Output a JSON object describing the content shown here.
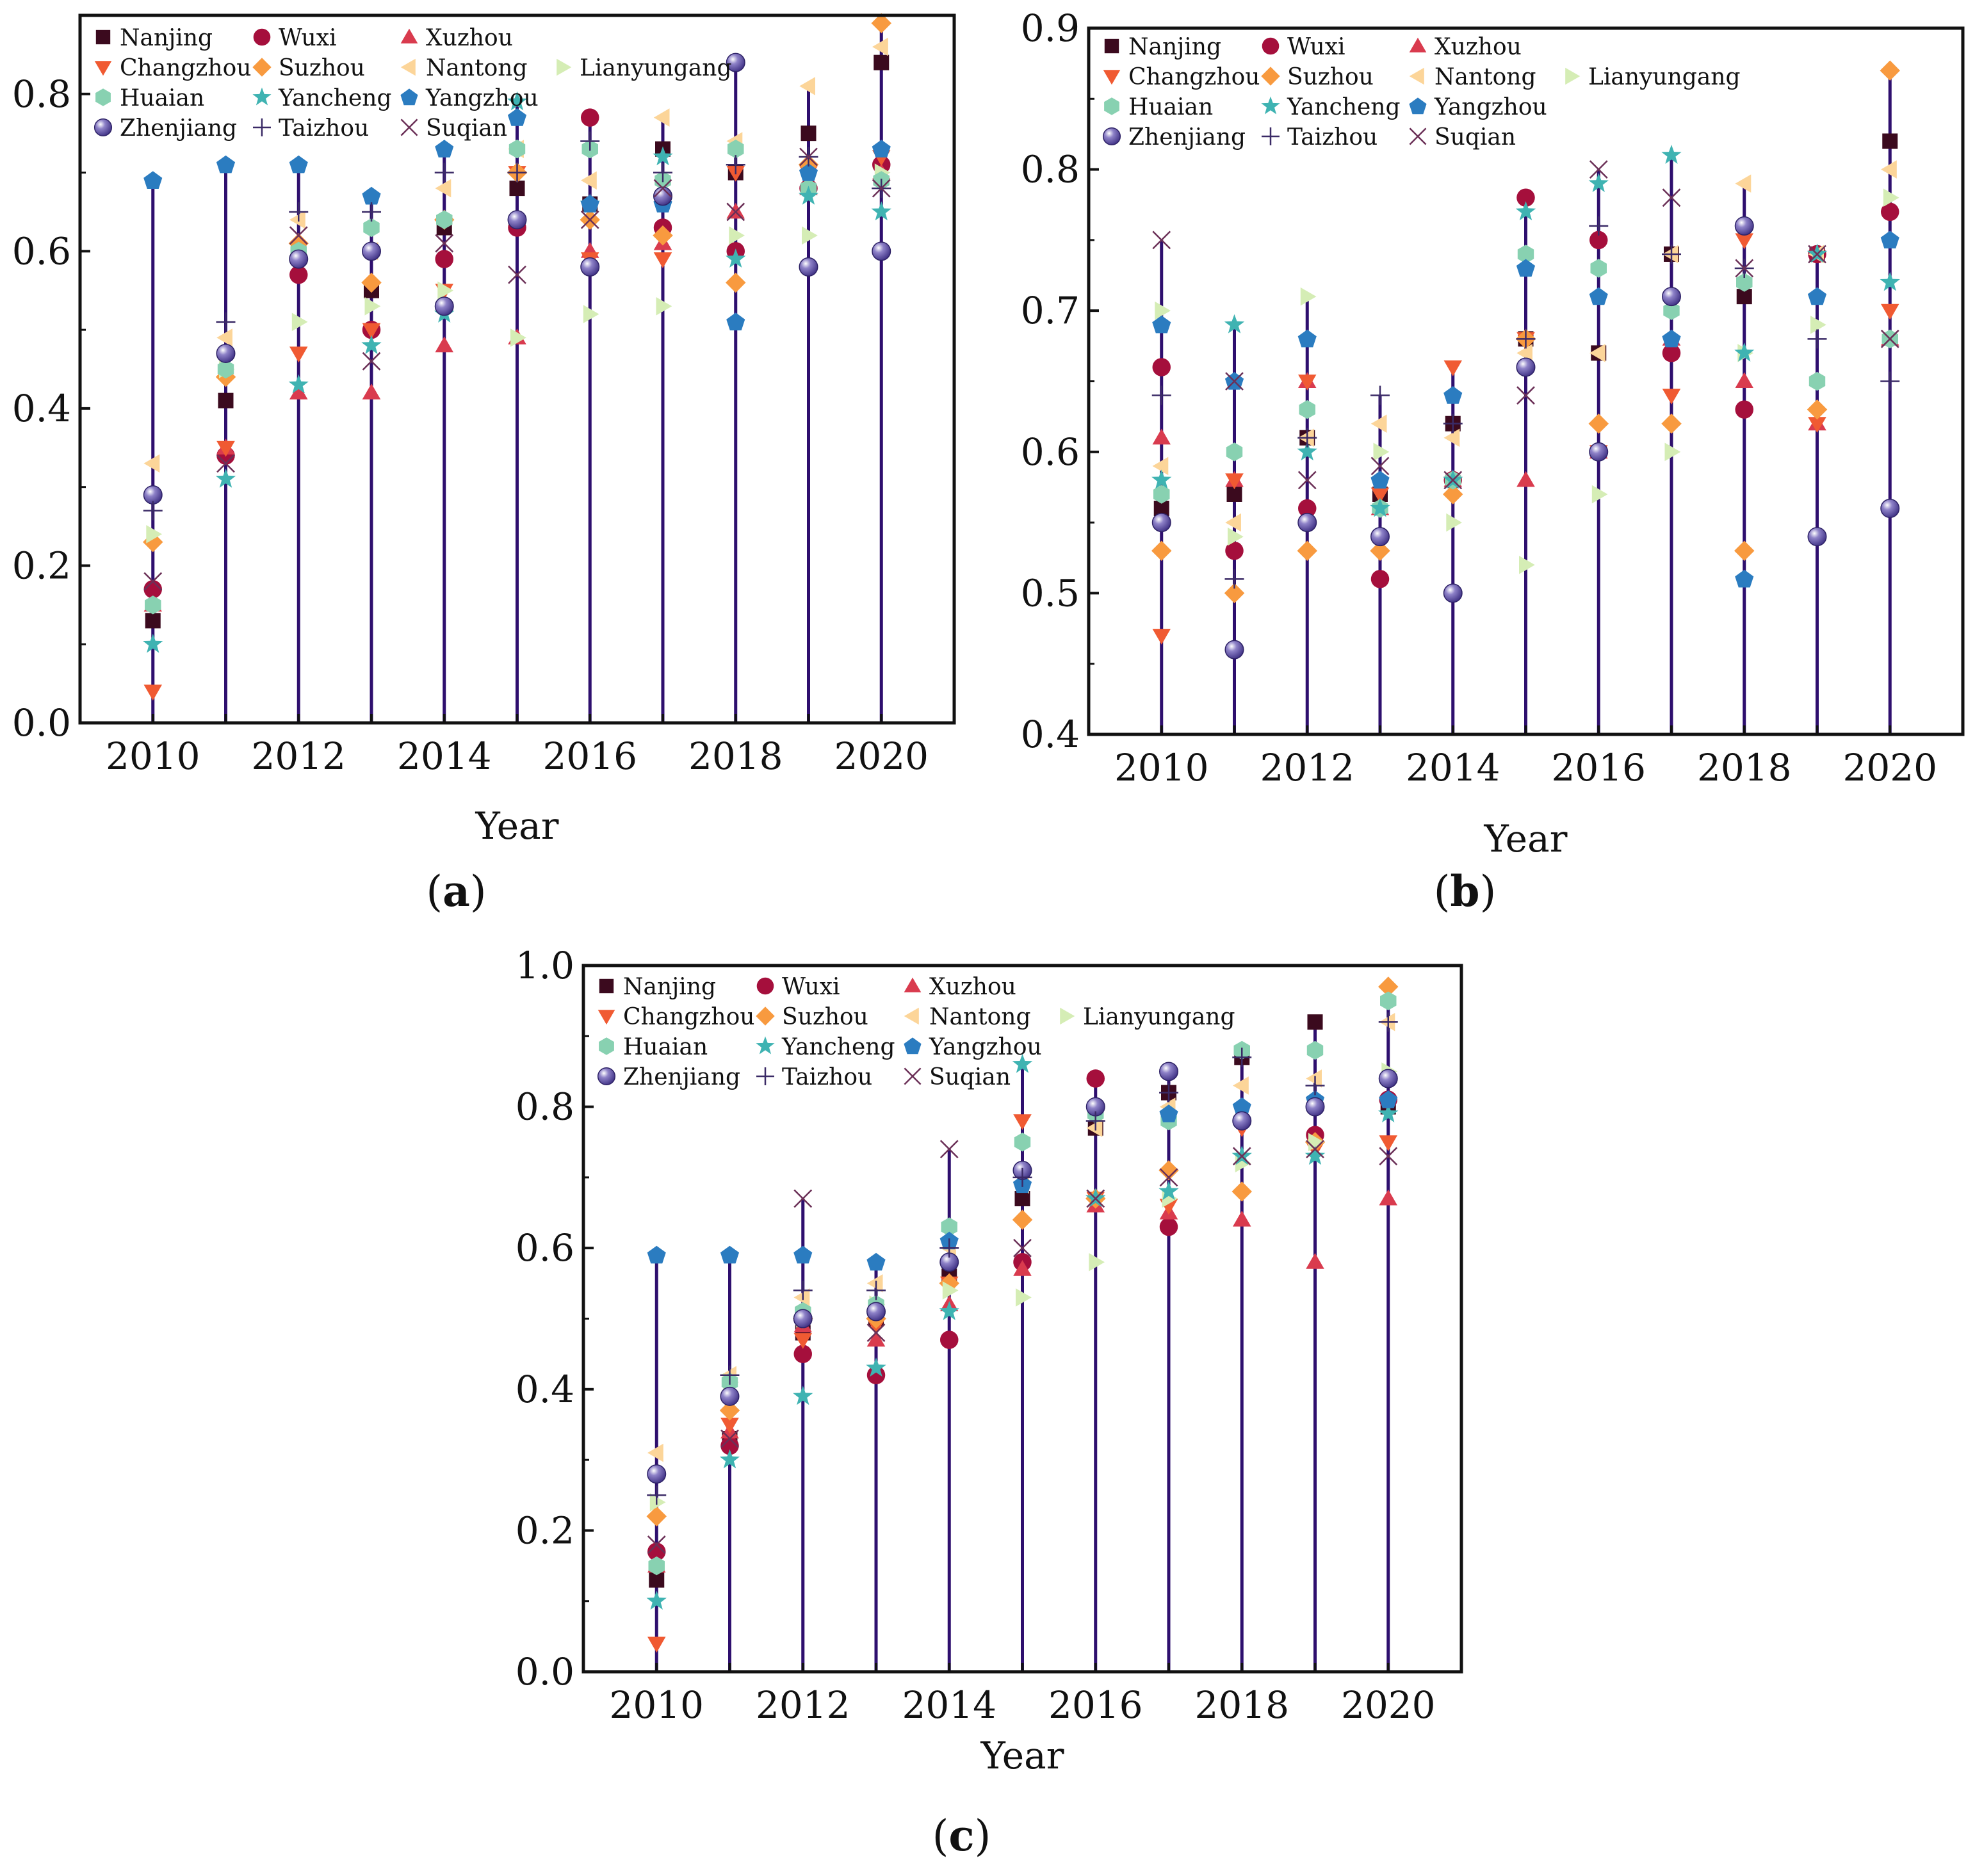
{
  "figure": {
    "cities": [
      "Nanjing",
      "Wuxi",
      "Xuzhou",
      "Changzhou",
      "Suzhou",
      "Nantong",
      "Lianyungang",
      "Huaian",
      "Yancheng",
      "Yangzhou",
      "Zhenjiang",
      "Taizhou",
      "Suqian"
    ],
    "markers": {
      "Nanjing": {
        "shape": "square",
        "color": "#3b0a1e"
      },
      "Wuxi": {
        "shape": "circle",
        "color": "#a50f3c"
      },
      "Xuzhou": {
        "shape": "triangle-up",
        "color": "#d93b4e"
      },
      "Changzhou": {
        "shape": "triangle-down",
        "color": "#f05a32"
      },
      "Suzhou": {
        "shape": "diamond",
        "color": "#f89a3f"
      },
      "Nantong": {
        "shape": "triangle-left",
        "color": "#fcd599"
      },
      "Lianyungang": {
        "shape": "triangle-right",
        "color": "#d5edb5"
      },
      "Huaian": {
        "shape": "hexagon",
        "color": "#88d1b1"
      },
      "Yancheng": {
        "shape": "star",
        "color": "#3fb3b2"
      },
      "Yangzhou": {
        "shape": "pentagon",
        "color": "#2b7cc0"
      },
      "Zhenjiang": {
        "shape": "sphere",
        "color": "#5a4a9e"
      },
      "Taizhou": {
        "shape": "plus",
        "color": "#3a2a66"
      },
      "Suqian": {
        "shape": "cross",
        "color": "#6b3057"
      }
    },
    "stem_color": "#2e0f6e"
  },
  "chart_data": [
    {
      "type": "scatter",
      "panel": "(a)",
      "panel_letter": "a",
      "xlabel": "Year",
      "ylabel": "",
      "ylim": [
        0.0,
        0.9
      ],
      "xlim": [
        2009,
        2021
      ],
      "x": [
        2010,
        2011,
        2012,
        2013,
        2014,
        2015,
        2016,
        2017,
        2018,
        2019,
        2020
      ],
      "x_ticks": [
        "2010",
        "2012",
        "2014",
        "2016",
        "2018",
        "2020"
      ],
      "y_ticks": [
        "0.0",
        "0.2",
        "0.4",
        "0.6",
        "0.8"
      ],
      "series": [
        {
          "name": "Nanjing",
          "values": [
            0.13,
            0.41,
            0.6,
            0.55,
            0.63,
            0.68,
            0.66,
            0.73,
            0.7,
            0.75,
            0.84
          ]
        },
        {
          "name": "Wuxi",
          "values": [
            0.17,
            0.34,
            0.57,
            0.5,
            0.59,
            0.63,
            0.77,
            0.63,
            0.6,
            0.68,
            0.71
          ]
        },
        {
          "name": "Xuzhou",
          "values": [
            0.15,
            0.35,
            0.42,
            0.42,
            0.48,
            0.49,
            0.6,
            0.61,
            0.65,
            0.68,
            0.7
          ]
        },
        {
          "name": "Changzhou",
          "values": [
            0.04,
            0.35,
            0.47,
            0.5,
            0.55,
            0.7,
            0.59,
            0.59,
            0.7,
            0.7,
            0.72
          ]
        },
        {
          "name": "Suzhou",
          "values": [
            0.23,
            0.44,
            0.61,
            0.56,
            0.64,
            0.7,
            0.64,
            0.62,
            0.56,
            0.71,
            0.89
          ]
        },
        {
          "name": "Nantong",
          "values": [
            0.33,
            0.49,
            0.64,
            0.6,
            0.68,
            0.73,
            0.69,
            0.77,
            0.74,
            0.81,
            0.86
          ]
        },
        {
          "name": "Lianyungang",
          "values": [
            0.24,
            0.45,
            0.51,
            0.53,
            0.55,
            0.49,
            0.52,
            0.53,
            0.62,
            0.62,
            0.7
          ]
        },
        {
          "name": "Huaian",
          "values": [
            0.15,
            0.45,
            0.6,
            0.63,
            0.64,
            0.73,
            0.73,
            0.69,
            0.73,
            0.68,
            0.69
          ]
        },
        {
          "name": "Yancheng",
          "values": [
            0.1,
            0.31,
            0.43,
            0.48,
            0.52,
            0.79,
            0.66,
            0.72,
            0.59,
            0.67,
            0.65
          ]
        },
        {
          "name": "Yangzhou",
          "values": [
            0.69,
            0.71,
            0.71,
            0.67,
            0.73,
            0.77,
            0.66,
            0.66,
            0.51,
            0.7,
            0.73
          ]
        },
        {
          "name": "Zhenjiang",
          "values": [
            0.29,
            0.47,
            0.59,
            0.6,
            0.53,
            0.64,
            0.58,
            0.67,
            0.84,
            0.58,
            0.6
          ]
        },
        {
          "name": "Taizhou",
          "values": [
            0.27,
            0.51,
            0.65,
            0.65,
            0.7,
            0.7,
            0.74,
            0.7,
            0.71,
            0.72,
            0.68
          ]
        },
        {
          "name": "Suqian",
          "values": [
            0.18,
            0.33,
            0.62,
            0.46,
            0.61,
            0.57,
            0.64,
            0.68,
            0.65,
            0.72,
            0.68
          ]
        }
      ]
    },
    {
      "type": "scatter",
      "panel": "(b)",
      "panel_letter": "b",
      "xlabel": "Year",
      "ylabel": "",
      "ylim": [
        0.4,
        0.9
      ],
      "xlim": [
        2009,
        2021
      ],
      "x": [
        2010,
        2011,
        2012,
        2013,
        2014,
        2015,
        2016,
        2017,
        2018,
        2019,
        2020
      ],
      "x_ticks": [
        "2010",
        "2012",
        "2014",
        "2016",
        "2018",
        "2020"
      ],
      "y_ticks": [
        "0.4",
        "0.5",
        "0.6",
        "0.7",
        "0.8",
        "0.9"
      ],
      "series": [
        {
          "name": "Nanjing",
          "values": [
            0.56,
            0.57,
            0.61,
            0.57,
            0.62,
            0.68,
            0.67,
            0.74,
            0.71,
            0.74,
            0.82
          ]
        },
        {
          "name": "Wuxi",
          "values": [
            0.66,
            0.53,
            0.56,
            0.51,
            0.58,
            0.78,
            0.75,
            0.67,
            0.63,
            0.74,
            0.77
          ]
        },
        {
          "name": "Xuzhou",
          "values": [
            0.61,
            0.58,
            0.65,
            0.56,
            0.58,
            0.58,
            0.6,
            0.68,
            0.65,
            0.62,
            0.68
          ]
        },
        {
          "name": "Changzhou",
          "values": [
            0.47,
            0.58,
            0.65,
            0.57,
            0.66,
            0.68,
            0.6,
            0.64,
            0.75,
            0.62,
            0.7
          ]
        },
        {
          "name": "Suzhou",
          "values": [
            0.53,
            0.5,
            0.53,
            0.53,
            0.57,
            0.68,
            0.62,
            0.62,
            0.53,
            0.63,
            0.87
          ]
        },
        {
          "name": "Nantong",
          "values": [
            0.59,
            0.55,
            0.61,
            0.62,
            0.61,
            0.67,
            0.67,
            0.74,
            0.79,
            0.74,
            0.8
          ]
        },
        {
          "name": "Lianyungang",
          "values": [
            0.7,
            0.54,
            0.71,
            0.6,
            0.55,
            0.52,
            0.57,
            0.6,
            0.67,
            0.69,
            0.78
          ]
        },
        {
          "name": "Huaian",
          "values": [
            0.57,
            0.6,
            0.63,
            0.56,
            0.58,
            0.74,
            0.73,
            0.7,
            0.72,
            0.65,
            0.68
          ]
        },
        {
          "name": "Yancheng",
          "values": [
            0.58,
            0.69,
            0.6,
            0.56,
            0.58,
            0.77,
            0.79,
            0.81,
            0.67,
            0.74,
            0.72
          ]
        },
        {
          "name": "Yangzhou",
          "values": [
            0.69,
            0.65,
            0.68,
            0.58,
            0.64,
            0.73,
            0.71,
            0.68,
            0.51,
            0.71,
            0.75
          ]
        },
        {
          "name": "Zhenjiang",
          "values": [
            0.55,
            0.46,
            0.55,
            0.54,
            0.5,
            0.66,
            0.6,
            0.71,
            0.76,
            0.54,
            0.56
          ]
        },
        {
          "name": "Taizhou",
          "values": [
            0.64,
            0.51,
            0.61,
            0.64,
            0.62,
            0.68,
            0.76,
            0.74,
            0.73,
            0.68,
            0.65
          ]
        },
        {
          "name": "Suqian",
          "values": [
            0.75,
            0.65,
            0.58,
            0.59,
            0.58,
            0.64,
            0.8,
            0.78,
            0.73,
            0.74,
            0.68
          ]
        }
      ]
    },
    {
      "type": "scatter",
      "panel": "(c)",
      "panel_letter": "c",
      "xlabel": "Year",
      "ylabel": "",
      "ylim": [
        0.0,
        1.0
      ],
      "xlim": [
        2009,
        2021
      ],
      "x": [
        2010,
        2011,
        2012,
        2013,
        2014,
        2015,
        2016,
        2017,
        2018,
        2019,
        2020
      ],
      "x_ticks": [
        "2010",
        "2012",
        "2014",
        "2016",
        "2018",
        "2020"
      ],
      "y_ticks": [
        "0.0",
        "0.2",
        "0.4",
        "0.6",
        "0.8",
        "1.0"
      ],
      "series": [
        {
          "name": "Nanjing",
          "values": [
            0.13,
            0.33,
            0.48,
            0.5,
            0.56,
            0.67,
            0.77,
            0.82,
            0.87,
            0.92,
            0.8
          ]
        },
        {
          "name": "Wuxi",
          "values": [
            0.17,
            0.32,
            0.45,
            0.42,
            0.47,
            0.58,
            0.84,
            0.63,
            0.78,
            0.76,
            0.81
          ]
        },
        {
          "name": "Xuzhou",
          "values": [
            0.15,
            0.34,
            0.49,
            0.47,
            0.52,
            0.57,
            0.66,
            0.65,
            0.64,
            0.58,
            0.67
          ]
        },
        {
          "name": "Changzhou",
          "values": [
            0.04,
            0.35,
            0.47,
            0.49,
            0.55,
            0.78,
            0.67,
            0.66,
            0.77,
            0.74,
            0.75
          ]
        },
        {
          "name": "Suzhou",
          "values": [
            0.22,
            0.37,
            0.5,
            0.5,
            0.55,
            0.64,
            0.67,
            0.71,
            0.68,
            0.75,
            0.97
          ]
        },
        {
          "name": "Nantong",
          "values": [
            0.31,
            0.42,
            0.53,
            0.55,
            0.6,
            0.69,
            0.77,
            0.8,
            0.83,
            0.84,
            0.92
          ]
        },
        {
          "name": "Lianyungang",
          "values": [
            0.24,
            0.41,
            0.5,
            0.52,
            0.54,
            0.53,
            0.58,
            0.67,
            0.72,
            0.75,
            0.85
          ]
        },
        {
          "name": "Huaian",
          "values": [
            0.15,
            0.41,
            0.51,
            0.52,
            0.63,
            0.75,
            0.79,
            0.78,
            0.88,
            0.88,
            0.95
          ]
        },
        {
          "name": "Yancheng",
          "values": [
            0.1,
            0.3,
            0.39,
            0.43,
            0.51,
            0.86,
            0.67,
            0.68,
            0.73,
            0.73,
            0.79
          ]
        },
        {
          "name": "Yangzhou",
          "values": [
            0.59,
            0.59,
            0.59,
            0.58,
            0.61,
            0.69,
            0.8,
            0.79,
            0.8,
            0.81,
            0.81
          ]
        },
        {
          "name": "Zhenjiang",
          "values": [
            0.28,
            0.39,
            0.5,
            0.51,
            0.58,
            0.71,
            0.8,
            0.85,
            0.78,
            0.8,
            0.84
          ]
        },
        {
          "name": "Taizhou",
          "values": [
            0.25,
            0.42,
            0.54,
            0.54,
            0.6,
            0.7,
            0.78,
            0.82,
            0.87,
            0.83,
            0.92
          ]
        },
        {
          "name": "Suqian",
          "values": [
            0.18,
            0.33,
            0.67,
            0.48,
            0.74,
            0.6,
            0.67,
            0.7,
            0.73,
            0.74,
            0.73
          ]
        }
      ]
    }
  ]
}
